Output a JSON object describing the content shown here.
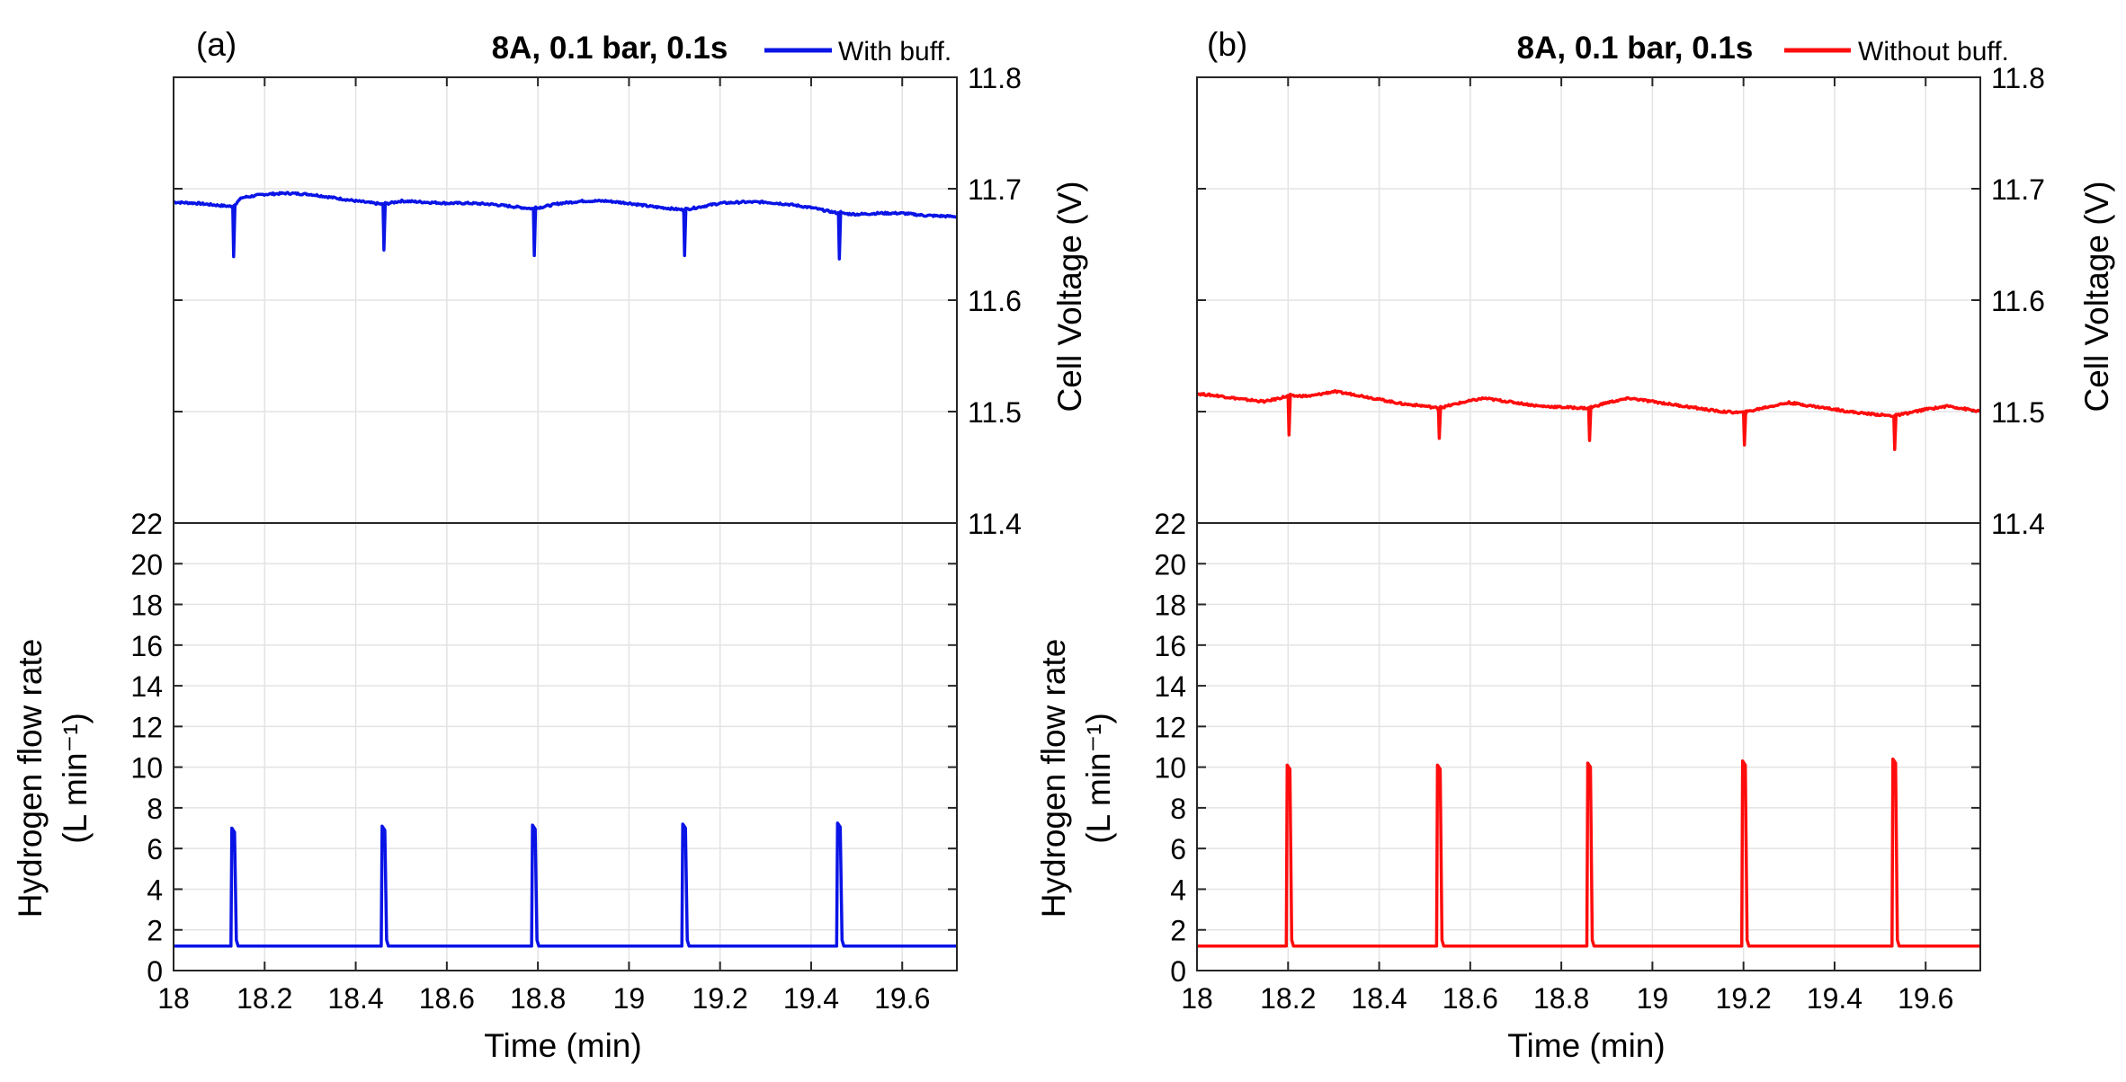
{
  "chart_data": [
    {
      "panel_label": "(a)",
      "title": "8A, 0.1 bar, 0.1s",
      "legend": "With buff.",
      "color": "#0a14e6",
      "xlabel": "Time (min)",
      "xlim": [
        18,
        19.72
      ],
      "xticks": [
        "18",
        "18.2",
        "18.4",
        "18.6",
        "18.8",
        "19",
        "19.2",
        "19.4",
        "19.6"
      ],
      "voltage": {
        "type": "line",
        "ylabel": "Cell Voltage (V)",
        "ylim": [
          11.4,
          11.8
        ],
        "yticks": [
          "11.4",
          "11.5",
          "11.6",
          "11.7",
          "11.8"
        ],
        "x": [
          18.0,
          18.05,
          18.1,
          18.13,
          18.15,
          18.2,
          18.25,
          18.3,
          18.35,
          18.4,
          18.46,
          18.5,
          18.55,
          18.6,
          18.65,
          18.7,
          18.79,
          18.85,
          18.9,
          18.95,
          19.0,
          19.05,
          19.12,
          19.2,
          19.25,
          19.3,
          19.35,
          19.4,
          19.46,
          19.5,
          19.55,
          19.6,
          19.65,
          19.72
        ],
        "y": [
          11.688,
          11.687,
          11.685,
          11.684,
          11.692,
          11.695,
          11.696,
          11.695,
          11.692,
          11.689,
          11.686,
          11.689,
          11.688,
          11.687,
          11.687,
          11.686,
          11.682,
          11.687,
          11.689,
          11.689,
          11.687,
          11.684,
          11.681,
          11.687,
          11.688,
          11.688,
          11.686,
          11.683,
          11.678,
          11.677,
          11.678,
          11.678,
          11.676,
          11.675
        ],
        "dips": [
          {
            "x": 18.13,
            "min": 11.639
          },
          {
            "x": 18.46,
            "min": 11.645
          },
          {
            "x": 18.79,
            "min": 11.64
          },
          {
            "x": 19.12,
            "min": 11.64
          },
          {
            "x": 19.46,
            "min": 11.637
          }
        ]
      },
      "flow": {
        "type": "line",
        "ylabel": "Hydrogen flow rate",
        "ylabel_unit": "(L min⁻¹)",
        "ylim": [
          0,
          22
        ],
        "yticks": [
          "0",
          "2",
          "4",
          "6",
          "8",
          "10",
          "12",
          "14",
          "16",
          "18",
          "20",
          "22"
        ],
        "baseline": 1.2,
        "peaks": [
          {
            "x": 18.13,
            "y": 7.0
          },
          {
            "x": 18.46,
            "y": 7.1
          },
          {
            "x": 18.79,
            "y": 7.15
          },
          {
            "x": 19.12,
            "y": 7.2
          },
          {
            "x": 19.46,
            "y": 7.25
          }
        ]
      }
    },
    {
      "panel_label": "(b)",
      "title": "8A, 0.1 bar, 0.1s",
      "legend": "Without buff.",
      "color": "#ff0d0d",
      "xlabel": "Time (min)",
      "xlim": [
        18,
        19.72
      ],
      "xticks": [
        "18",
        "18.2",
        "18.4",
        "18.6",
        "18.8",
        "19",
        "19.2",
        "19.4",
        "19.6"
      ],
      "voltage": {
        "type": "line",
        "ylabel": "Cell Voltage (V)",
        "ylim": [
          11.4,
          11.8
        ],
        "yticks": [
          "11.4",
          "11.5",
          "11.6",
          "11.7",
          "11.8"
        ],
        "x": [
          18.0,
          18.05,
          18.1,
          18.15,
          18.2,
          18.25,
          18.3,
          18.35,
          18.4,
          18.45,
          18.5,
          18.53,
          18.58,
          18.63,
          18.7,
          18.75,
          18.8,
          18.86,
          18.9,
          18.95,
          19.0,
          19.05,
          19.1,
          19.15,
          19.2,
          19.25,
          19.3,
          19.35,
          19.4,
          19.45,
          19.53,
          19.6,
          19.65,
          19.72
        ],
        "y": [
          11.516,
          11.514,
          11.511,
          11.509,
          11.514,
          11.514,
          11.518,
          11.515,
          11.511,
          11.507,
          11.505,
          11.503,
          11.508,
          11.512,
          11.508,
          11.505,
          11.504,
          11.503,
          11.508,
          11.512,
          11.509,
          11.506,
          11.503,
          11.5,
          11.499,
          11.504,
          11.508,
          11.505,
          11.502,
          11.499,
          11.496,
          11.502,
          11.505,
          11.5
        ],
        "dips": [
          {
            "x": 18.2,
            "min": 11.479
          },
          {
            "x": 18.53,
            "min": 11.476
          },
          {
            "x": 18.86,
            "min": 11.474
          },
          {
            "x": 19.2,
            "min": 11.47
          },
          {
            "x": 19.53,
            "min": 11.466
          }
        ]
      },
      "flow": {
        "type": "line",
        "ylabel": "Hydrogen flow rate",
        "ylabel_unit": "(L min⁻¹)",
        "ylim": [
          0,
          22
        ],
        "yticks": [
          "0",
          "2",
          "4",
          "6",
          "8",
          "10",
          "12",
          "14",
          "16",
          "18",
          "20",
          "22"
        ],
        "baseline": 1.2,
        "peaks": [
          {
            "x": 18.2,
            "y": 10.1
          },
          {
            "x": 18.53,
            "y": 10.1
          },
          {
            "x": 18.86,
            "y": 10.2
          },
          {
            "x": 19.2,
            "y": 10.3
          },
          {
            "x": 19.53,
            "y": 10.4
          }
        ]
      }
    }
  ]
}
